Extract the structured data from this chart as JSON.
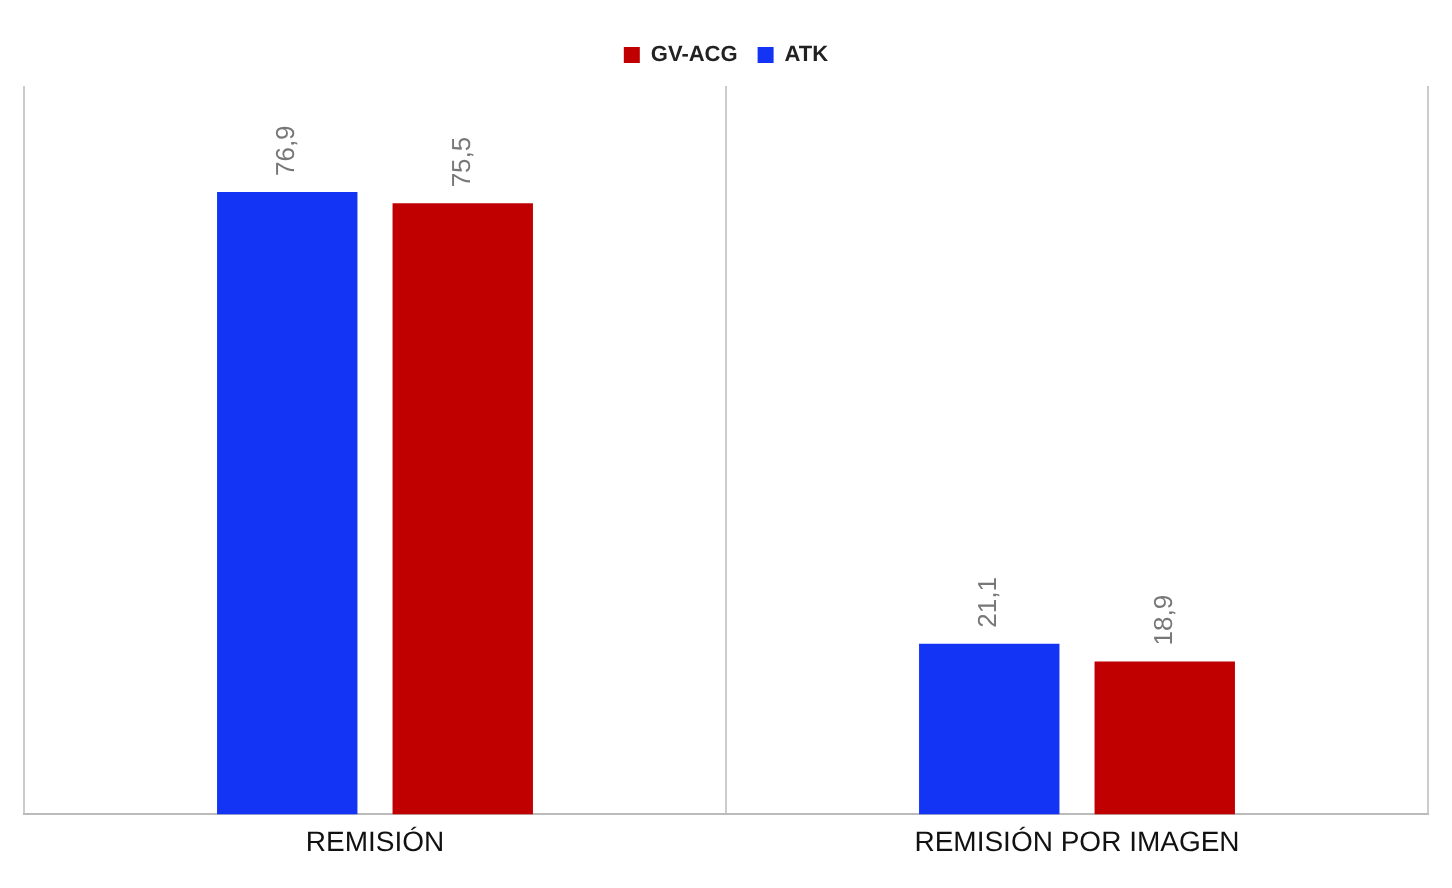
{
  "chart_data": {
    "type": "bar",
    "categories": [
      "REMISIÓN",
      "REMISIÓN POR IMAGEN"
    ],
    "legend": "top",
    "grid": "x",
    "tick_labels": "x",
    "series": [
      {
        "name": "ATK",
        "color": "#1434f5",
        "values": [
          76.9,
          21.1
        ],
        "value_labels": [
          "76,9",
          "21,1"
        ]
      },
      {
        "name": "GV-ACG",
        "color": "#c00000",
        "values": [
          75.5,
          18.9
        ],
        "value_labels": [
          "75,5",
          "18,9"
        ]
      }
    ]
  }
}
